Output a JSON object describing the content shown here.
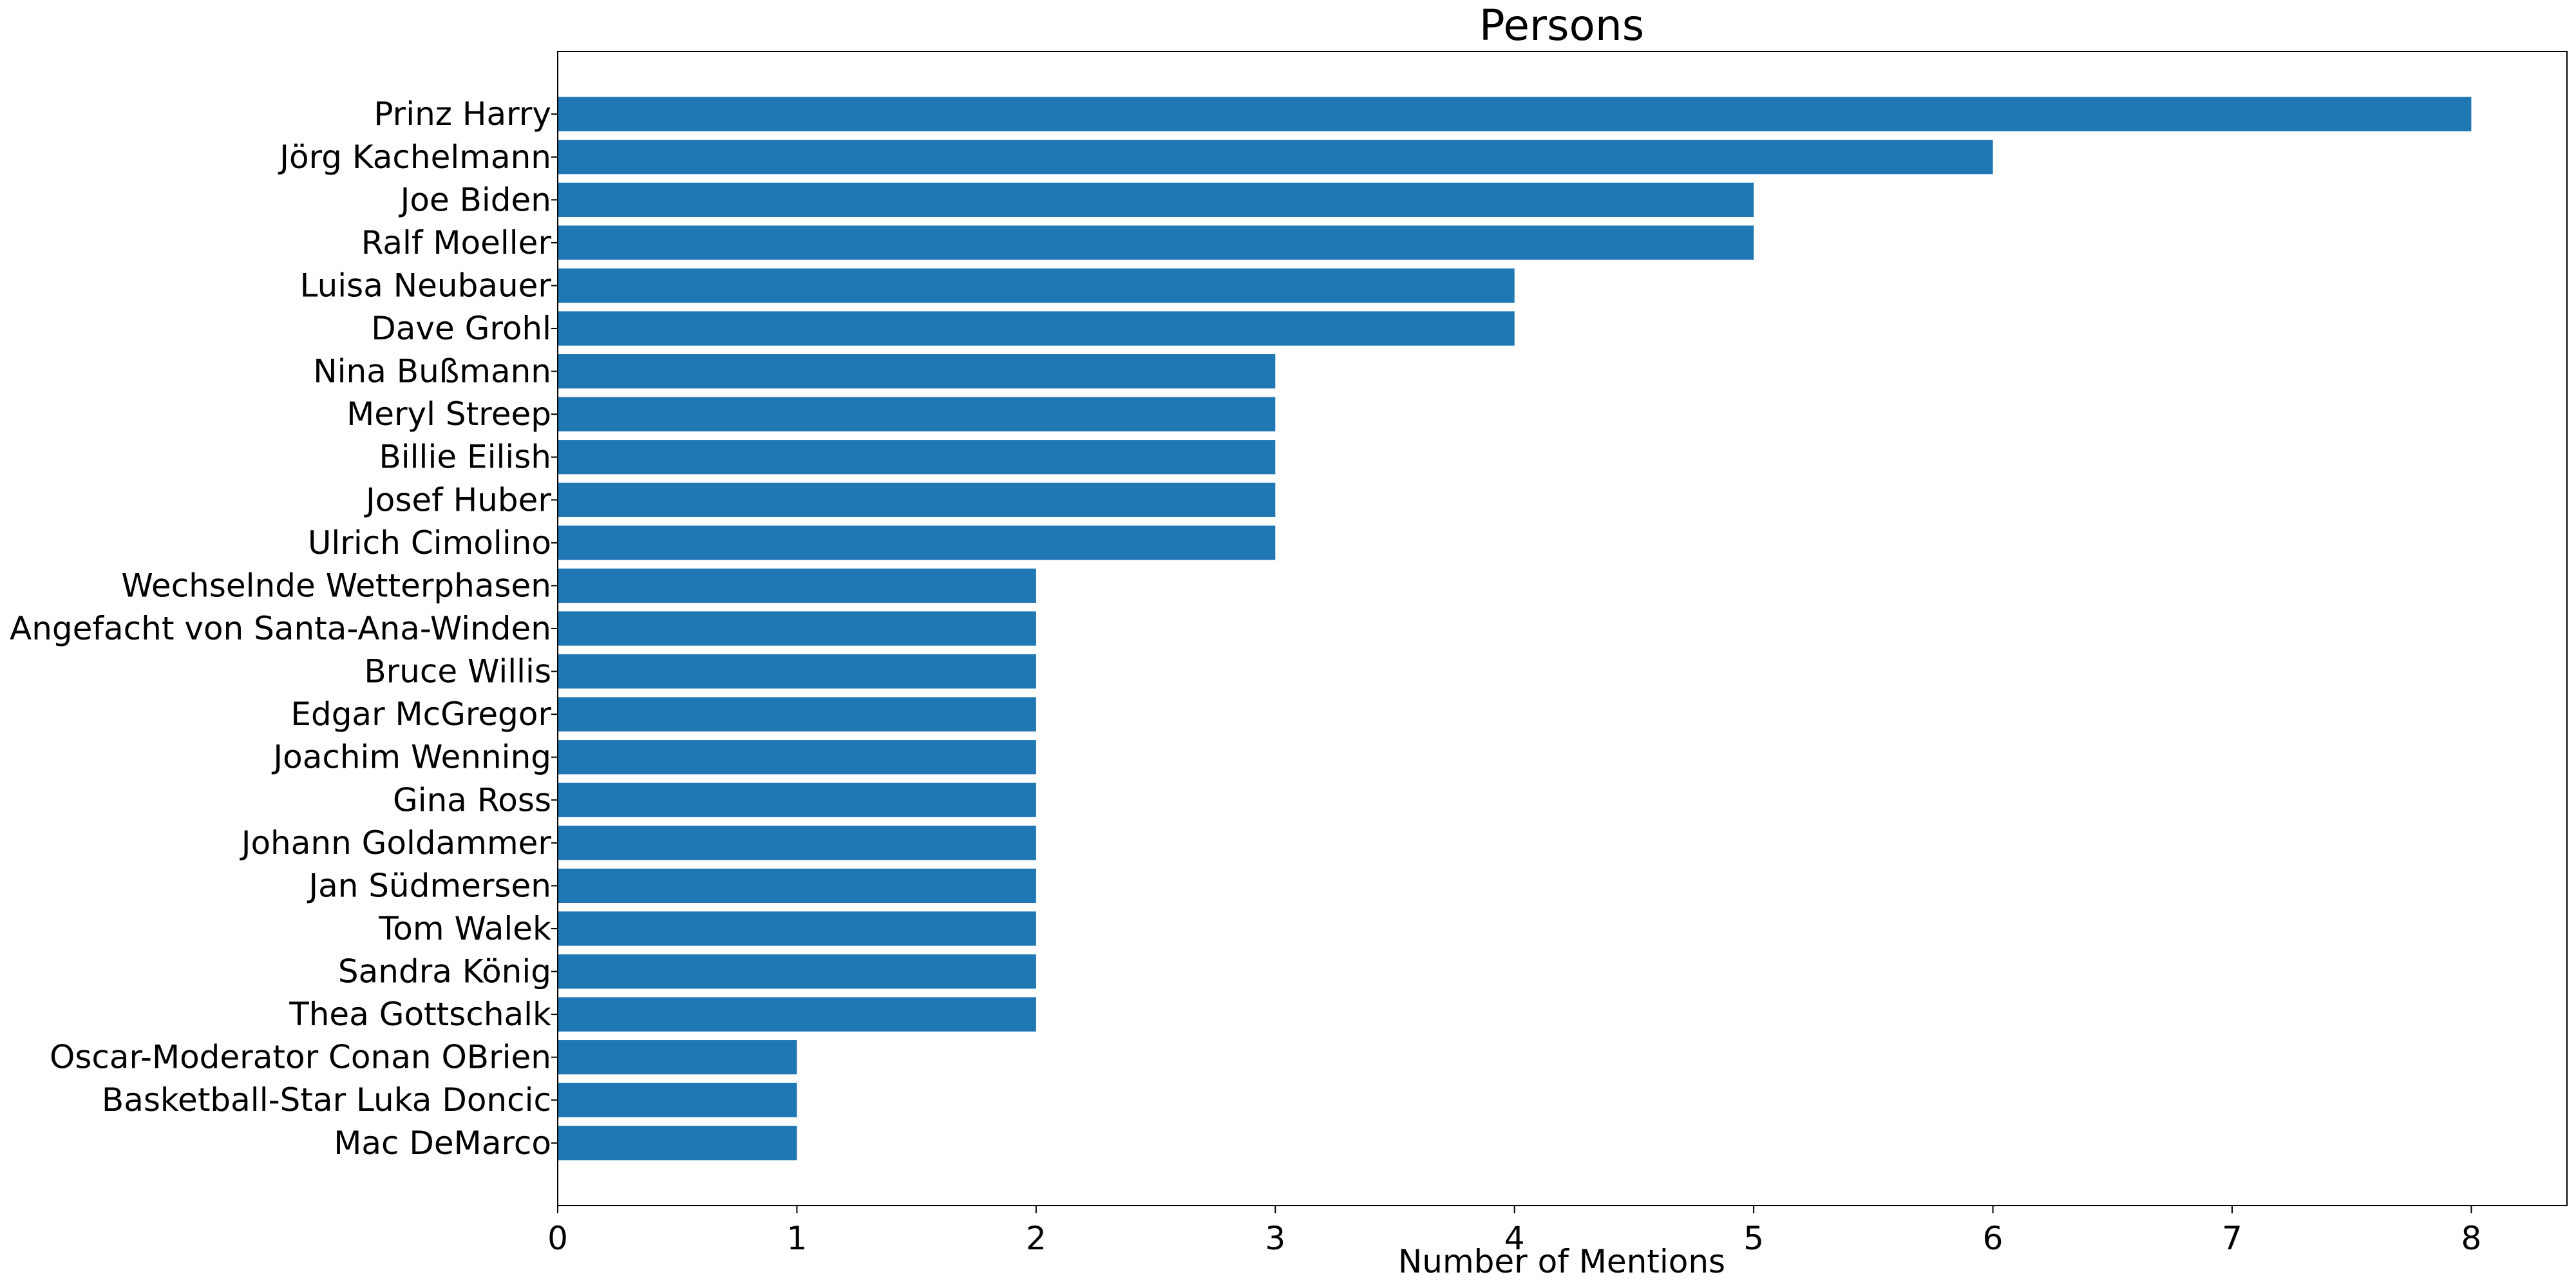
{
  "chart_data": {
    "type": "bar",
    "orientation": "horizontal",
    "title": "Persons",
    "xlabel": "Number of Mentions",
    "ylabel": "",
    "xlim": [
      0,
      8.4
    ],
    "xticks": [
      0,
      1,
      2,
      3,
      4,
      5,
      6,
      7,
      8
    ],
    "grid": false,
    "bar_color": "#1f77b4",
    "categories": [
      "Prinz Harry",
      "Jörg Kachelmann",
      "Joe Biden",
      "Ralf Moeller",
      "Luisa Neubauer",
      "Dave Grohl",
      "Nina Bußmann",
      "Meryl Streep",
      "Billie Eilish",
      "Josef Huber",
      "Ulrich Cimolino",
      "Wechselnde Wetterphasen",
      "Angefacht von Santa-Ana-Winden",
      "Bruce Willis",
      "Edgar McGregor",
      "Joachim Wenning",
      "Gina Ross",
      "Johann Goldammer",
      "Jan Südmersen",
      "Tom Walek",
      "Sandra König",
      "Thea Gottschalk",
      "Oscar-Moderator Conan OBrien",
      "Basketball-Star Luka Doncic",
      "Mac DeMarco"
    ],
    "values": [
      8,
      6,
      5,
      5,
      4,
      4,
      3,
      3,
      3,
      3,
      3,
      2,
      2,
      2,
      2,
      2,
      2,
      2,
      2,
      2,
      2,
      2,
      1,
      1,
      1
    ]
  }
}
